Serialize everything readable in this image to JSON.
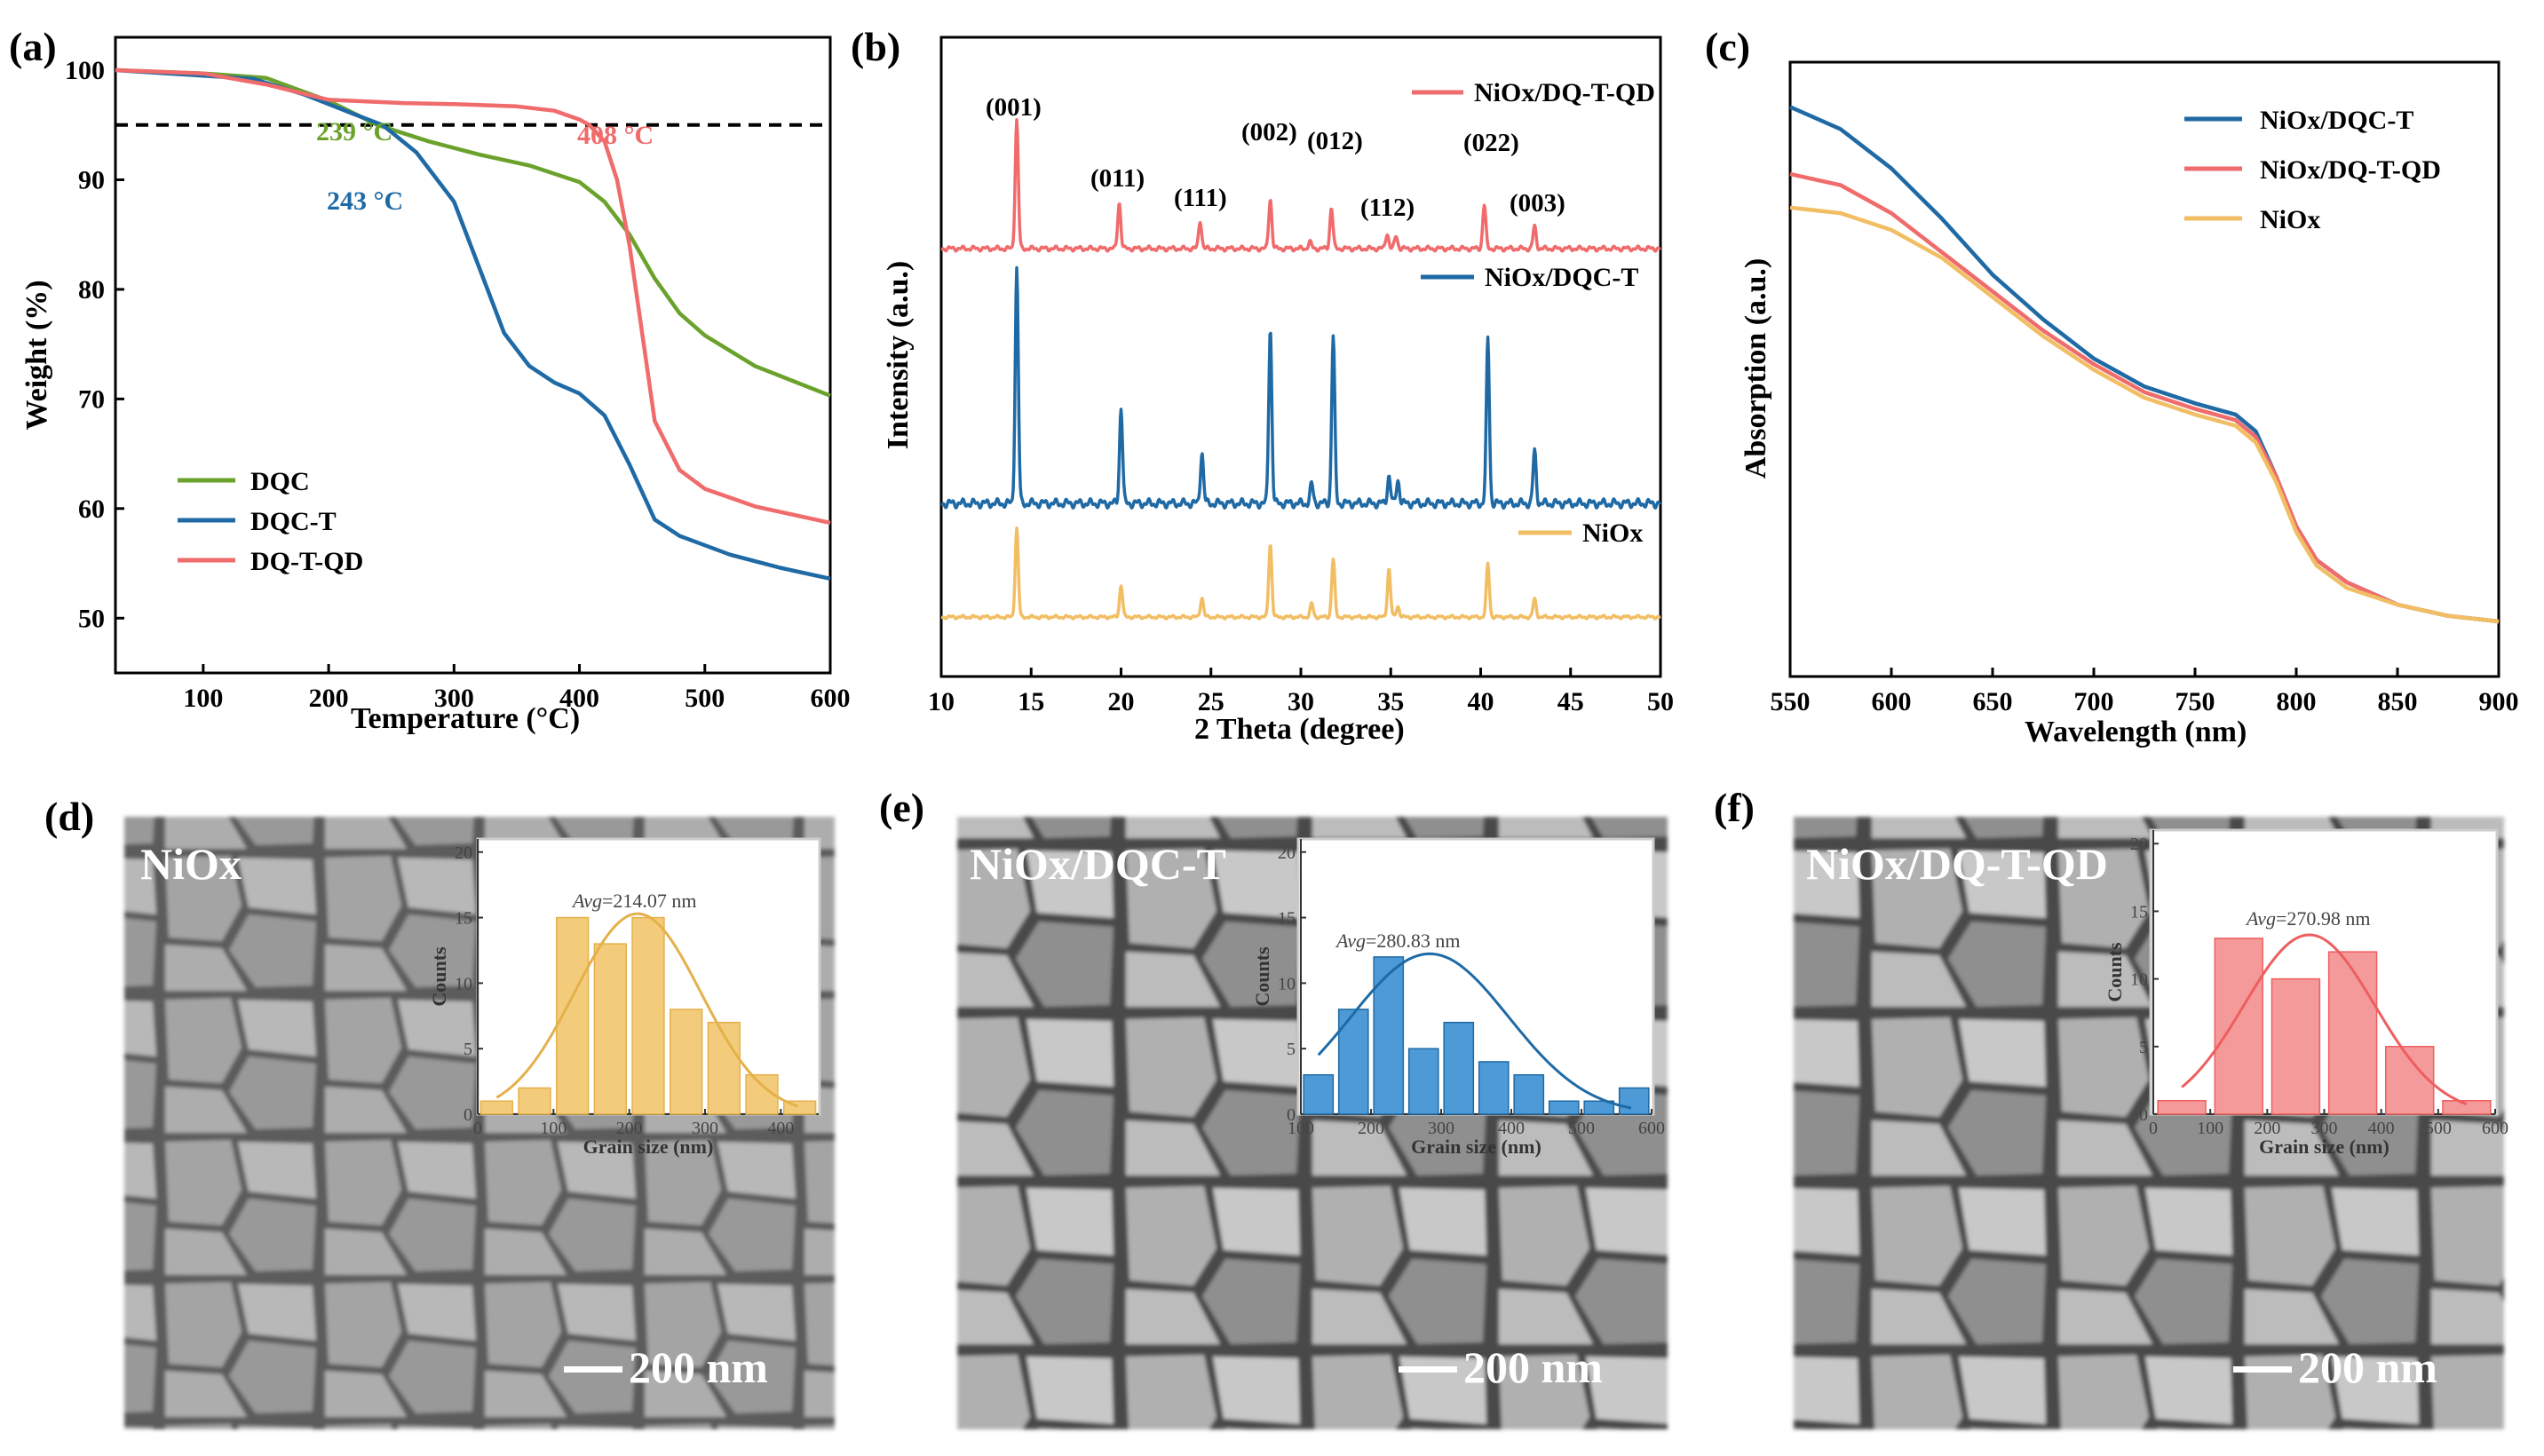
{
  "chart_data": [
    {
      "type": "line",
      "panel_label": "(a)",
      "title": "",
      "xlabel": "Temperature (°C)",
      "ylabel": "Weight (%)",
      "xlim": [
        30,
        600
      ],
      "ylim": [
        45,
        103
      ],
      "xticks": [
        "100",
        "200",
        "300",
        "400",
        "500",
        "600"
      ],
      "yticks": [
        "50",
        "60",
        "70",
        "80",
        "90",
        "100"
      ],
      "threshold_line": 95,
      "series": [
        {
          "name": "DQC",
          "color": "#6aa22c",
          "x": [
            30,
            100,
            150,
            200,
            239,
            280,
            320,
            360,
            400,
            420,
            440,
            460,
            480,
            500,
            540,
            600
          ],
          "y": [
            100,
            99.7,
            99.3,
            97.2,
            95,
            93.5,
            92.3,
            91.3,
            89.8,
            88,
            85,
            81,
            77.8,
            75.8,
            73,
            70.3
          ]
        },
        {
          "name": "DQC-T",
          "color": "#1f6aa5",
          "x": [
            30,
            100,
            140,
            180,
            220,
            243,
            270,
            300,
            320,
            340,
            360,
            380,
            400,
            420,
            440,
            460,
            480,
            520,
            560,
            600
          ],
          "y": [
            100,
            99.5,
            99.2,
            97.8,
            96,
            95,
            92.5,
            88,
            82,
            76,
            73,
            71.5,
            70.5,
            68.5,
            64,
            59,
            57.5,
            55.8,
            54.6,
            53.6
          ]
        },
        {
          "name": "DQ-T-QD",
          "color": "#f06b6b",
          "x": [
            30,
            100,
            150,
            200,
            260,
            300,
            350,
            380,
            400,
            408,
            420,
            430,
            440,
            450,
            460,
            480,
            500,
            540,
            600
          ],
          "y": [
            100,
            99.7,
            98.7,
            97.3,
            97,
            96.9,
            96.7,
            96.3,
            95.5,
            95,
            93.5,
            90,
            84,
            76,
            68,
            63.5,
            61.8,
            60.2,
            58.7
          ]
        }
      ],
      "annotations": [
        "239 °C",
        "243 °C",
        "408 °C"
      ]
    },
    {
      "type": "line",
      "panel_label": "(b)",
      "title": "",
      "xlabel": "2 Theta (degree)",
      "ylabel": "Intensity (a.u.)",
      "xlim": [
        10,
        50
      ],
      "xticks": [
        "10",
        "15",
        "20",
        "25",
        "30",
        "35",
        "40",
        "45",
        "50"
      ],
      "series": [
        {
          "name": "NiOx/DQ-T-QD",
          "color": "#f06b6b",
          "baseline": 0,
          "peaks": [
            [
              14.2,
              1.0
            ],
            [
              19.9,
              0.36
            ],
            [
              24.4,
              0.22
            ],
            [
              28.3,
              0.39
            ],
            [
              30.5,
              0.05
            ],
            [
              31.7,
              0.32
            ],
            [
              34.8,
              0.12
            ],
            [
              35.3,
              0.1
            ],
            [
              40.2,
              0.34
            ],
            [
              43.0,
              0.17
            ]
          ]
        },
        {
          "name": "NiOx/DQC-T",
          "color": "#1f6aa5",
          "baseline": 0,
          "peaks": [
            [
              14.2,
              1.0
            ],
            [
              20.0,
              0.41
            ],
            [
              24.5,
              0.22
            ],
            [
              28.3,
              0.75
            ],
            [
              30.6,
              0.08
            ],
            [
              31.8,
              0.71
            ],
            [
              34.9,
              0.12
            ],
            [
              35.4,
              0.1
            ],
            [
              40.4,
              0.7
            ],
            [
              43.0,
              0.22
            ]
          ]
        },
        {
          "name": "NiOx",
          "color": "#f2be64",
          "baseline": 0,
          "peaks": [
            [
              14.2,
              1.0
            ],
            [
              20.0,
              0.36
            ],
            [
              24.5,
              0.22
            ],
            [
              28.3,
              0.83
            ],
            [
              30.6,
              0.15
            ],
            [
              31.8,
              0.65
            ],
            [
              34.9,
              0.55
            ],
            [
              35.4,
              0.12
            ],
            [
              40.4,
              0.6
            ],
            [
              43.0,
              0.2
            ]
          ]
        }
      ],
      "annotations": [
        "(001)",
        "(011)",
        "(111)",
        "(002)",
        "(012)",
        "(112)",
        "(022)",
        "(003)"
      ]
    },
    {
      "type": "line",
      "panel_label": "(c)",
      "title": "",
      "xlabel": "Wavelength (nm)",
      "ylabel": "Absorption (a.u.)",
      "xlim": [
        550,
        900
      ],
      "xticks": [
        "550",
        "600",
        "650",
        "700",
        "750",
        "800",
        "850",
        "900"
      ],
      "series": [
        {
          "name": "NiOx/DQC-T",
          "color": "#1f6aa5",
          "x": [
            550,
            575,
            600,
            625,
            650,
            675,
            700,
            725,
            750,
            770,
            780,
            790,
            800,
            810,
            825,
            850,
            875,
            900
          ],
          "y": [
            0.92,
            0.88,
            0.81,
            0.72,
            0.62,
            0.54,
            0.47,
            0.42,
            0.39,
            0.37,
            0.34,
            0.26,
            0.17,
            0.11,
            0.07,
            0.03,
            0.01,
            0.0
          ]
        },
        {
          "name": "NiOx/DQ-T-QD",
          "color": "#f06b6b",
          "x": [
            550,
            575,
            600,
            625,
            650,
            675,
            700,
            725,
            750,
            770,
            780,
            790,
            800,
            810,
            825,
            850,
            875,
            900
          ],
          "y": [
            0.8,
            0.78,
            0.73,
            0.66,
            0.59,
            0.52,
            0.46,
            0.41,
            0.38,
            0.36,
            0.33,
            0.26,
            0.17,
            0.11,
            0.07,
            0.03,
            0.01,
            0.0
          ]
        },
        {
          "name": "NiOx",
          "color": "#f2be64",
          "x": [
            550,
            575,
            600,
            625,
            650,
            675,
            700,
            725,
            750,
            770,
            780,
            790,
            800,
            810,
            825,
            850,
            875,
            900
          ],
          "y": [
            0.74,
            0.73,
            0.7,
            0.65,
            0.58,
            0.51,
            0.45,
            0.4,
            0.37,
            0.35,
            0.32,
            0.25,
            0.16,
            0.1,
            0.06,
            0.03,
            0.01,
            0.0
          ]
        }
      ]
    },
    {
      "type": "bar",
      "panel_label": "(d)",
      "sample_label": "NiOx",
      "scale_bar": "200 nm",
      "xlabel": "Grain size (nm)",
      "ylabel": "Counts",
      "xlim": [
        0,
        450
      ],
      "ylim": [
        0,
        21
      ],
      "xticks": [
        "0",
        "100",
        "200",
        "300",
        "400"
      ],
      "yticks": [
        "0",
        "5",
        "10",
        "15",
        "20"
      ],
      "bin_centers": [
        25,
        75,
        125,
        175,
        225,
        275,
        325,
        375,
        425
      ],
      "values": [
        1,
        2,
        15,
        13,
        15,
        8,
        7,
        3,
        1
      ],
      "bar_color": "#f2cc7a",
      "fit_color": "#e5b04a",
      "avg_label": "Avg",
      "avg_value": "=214.07 nm"
    },
    {
      "type": "bar",
      "panel_label": "(e)",
      "sample_label": "NiOx/DQC-T",
      "scale_bar": "200 nm",
      "xlabel": "Grain size (nm)",
      "ylabel": "Counts",
      "xlim": [
        100,
        600
      ],
      "ylim": [
        0,
        21
      ],
      "xticks": [
        "100",
        "200",
        "300",
        "400",
        "500",
        "600"
      ],
      "yticks": [
        "0",
        "5",
        "10",
        "15",
        "20"
      ],
      "bin_centers": [
        125,
        175,
        225,
        275,
        325,
        375,
        425,
        475,
        525,
        575
      ],
      "values": [
        3,
        8,
        12,
        5,
        7,
        4,
        3,
        1,
        1,
        2
      ],
      "bar_color": "#4d9ad6",
      "fit_color": "#1f6aa5",
      "avg_label": "Avg",
      "avg_value": "=280.83 nm"
    },
    {
      "type": "bar",
      "panel_label": "(f)",
      "sample_label": "NiOx/DQ-T-QD",
      "scale_bar": "200 nm",
      "xlabel": "Grain size (nm)",
      "ylabel": "Counts",
      "xlim": [
        0,
        600
      ],
      "ylim": [
        0,
        21
      ],
      "xticks": [
        "0",
        "100",
        "200",
        "300",
        "400",
        "500",
        "600"
      ],
      "yticks": [
        "0",
        "5",
        "10",
        "15",
        "20"
      ],
      "bin_centers": [
        50,
        150,
        250,
        350,
        450,
        550
      ],
      "values": [
        1,
        13,
        10,
        12,
        5,
        1
      ],
      "bar_color": "#f49a9a",
      "fit_color": "#ee5e5e",
      "avg_label": "Avg",
      "avg_value": "=270.98 nm"
    }
  ]
}
